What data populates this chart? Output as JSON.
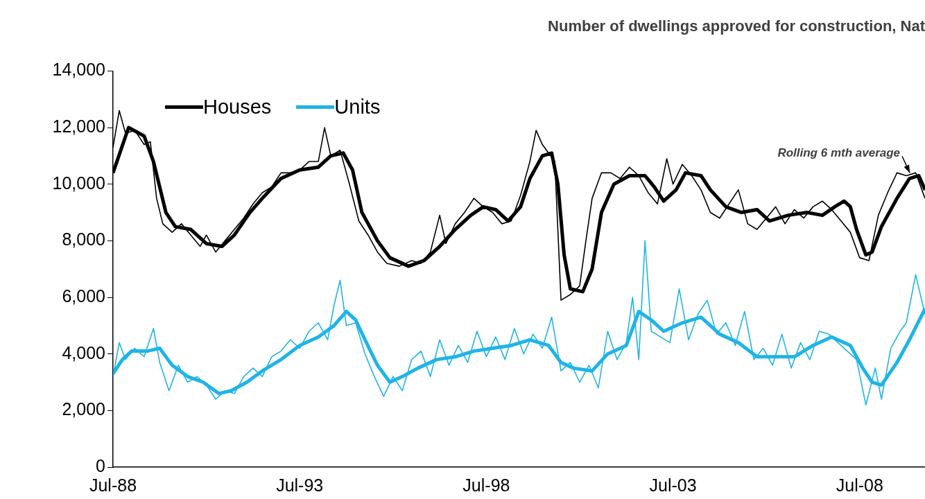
{
  "chart_data": {
    "type": "line",
    "title": "Number of dwellings approved for construction, Nat",
    "xlim": [
      "1988-07",
      "2010-04"
    ],
    "xticks": [
      {
        "value": "1988-07",
        "label": "Jul-88"
      },
      {
        "value": "1993-07",
        "label": "Jul-93"
      },
      {
        "value": "1998-07",
        "label": "Jul-98"
      },
      {
        "value": "2003-07",
        "label": "Jul-03"
      },
      {
        "value": "2008-07",
        "label": "Jul-08"
      }
    ],
    "ylim": [
      0,
      14000
    ],
    "yticks": [
      {
        "value": 0,
        "label": "0"
      },
      {
        "value": 2000,
        "label": "2,000"
      },
      {
        "value": 4000,
        "label": "4,000"
      },
      {
        "value": 6000,
        "label": "6,000"
      },
      {
        "value": 8000,
        "label": "8,000"
      },
      {
        "value": 10000,
        "label": "10,000"
      },
      {
        "value": 12000,
        "label": "12,000"
      },
      {
        "value": 14000,
        "label": "14,000"
      }
    ],
    "grid": false,
    "legend": "top left",
    "annotations": [
      {
        "text": "Rolling 6 mth average",
        "x": "2009-12",
        "y": 10300
      }
    ],
    "series": [
      {
        "color": "#000000",
        "x": [
          "1988-07",
          "1988-09",
          "1988-11",
          "1989-02",
          "1989-05",
          "1989-07",
          "1989-09",
          "1989-11",
          "1990-02",
          "1990-05",
          "1990-08",
          "1990-11",
          "1991-01",
          "1991-04",
          "1991-07",
          "1991-10",
          "1992-01",
          "1992-04",
          "1992-07",
          "1992-10",
          "1993-01",
          "1993-04",
          "1993-07",
          "1993-10",
          "1994-01",
          "1994-03",
          "1994-05",
          "1994-08",
          "1994-11",
          "1995-02",
          "1995-05",
          "1995-08",
          "1995-11",
          "1996-03",
          "1996-07",
          "1996-10",
          "1997-01",
          "1997-04",
          "1997-06",
          "1997-09",
          "1997-12",
          "1998-03",
          "1998-06",
          "1998-09",
          "1998-12",
          "1999-03",
          "1999-06",
          "1999-09",
          "1999-11",
          "2000-01",
          "2000-03",
          "2000-05",
          "2000-07",
          "2000-10",
          "2001-01",
          "2001-03",
          "2001-05",
          "2001-08",
          "2001-11",
          "2002-02",
          "2002-05",
          "2002-08",
          "2002-11",
          "2003-02",
          "2003-05",
          "2003-07",
          "2003-10",
          "2004-01",
          "2004-04",
          "2004-07",
          "2004-10",
          "2005-01",
          "2005-04",
          "2005-07",
          "2005-10",
          "2006-01",
          "2006-04",
          "2006-07",
          "2006-10",
          "2007-01",
          "2007-04",
          "2007-07",
          "2007-10",
          "2008-01",
          "2008-04",
          "2008-07",
          "2008-10",
          "2009-01",
          "2009-04",
          "2009-07",
          "2009-10",
          "2010-01",
          "2010-04"
        ],
        "values": [
          11300,
          12600,
          11800,
          11900,
          11400,
          11500,
          9500,
          8600,
          8300,
          8600,
          8200,
          7800,
          8200,
          7600,
          8000,
          8400,
          8800,
          9300,
          9700,
          9900,
          10400,
          10400,
          10500,
          10800,
          10800,
          12000,
          11000,
          11200,
          10000,
          8700,
          8200,
          7600,
          7200,
          7100,
          7300,
          7200,
          7600,
          8900,
          7900,
          8600,
          9000,
          9500,
          9200,
          9000,
          8600,
          8700,
          9600,
          10800,
          11900,
          11400,
          11100,
          10800,
          5900,
          6100,
          6400,
          8000,
          9500,
          10400,
          10400,
          10200,
          10600,
          10300,
          9700,
          9300,
          10900,
          10000,
          10700,
          10300,
          9800,
          9000,
          8800,
          9300,
          9800,
          8600,
          8400,
          8800,
          9200,
          8600,
          9100,
          8800,
          9200,
          9400,
          9100,
          8700,
          8300,
          7400,
          7300,
          8900,
          9700,
          10400,
          10300,
          10400,
          9500
        ]
      },
      {
        "color": "#1fb4e6",
        "x": [
          "1988-07",
          "1988-09",
          "1988-11",
          "1989-02",
          "1989-05",
          "1989-08",
          "1989-10",
          "1990-01",
          "1990-04",
          "1990-07",
          "1990-10",
          "1991-01",
          "1991-04",
          "1991-07",
          "1991-10",
          "1992-01",
          "1992-04",
          "1992-07",
          "1992-10",
          "1993-01",
          "1993-04",
          "1993-07",
          "1993-10",
          "1994-01",
          "1994-04",
          "1994-06",
          "1994-08",
          "1994-10",
          "1995-01",
          "1995-04",
          "1995-07",
          "1995-10",
          "1996-01",
          "1996-04",
          "1996-07",
          "1996-10",
          "1997-01",
          "1997-04",
          "1997-07",
          "1997-10",
          "1998-01",
          "1998-04",
          "1998-07",
          "1998-10",
          "1999-01",
          "1999-04",
          "1999-07",
          "1999-10",
          "2000-01",
          "2000-04",
          "2000-07",
          "2000-10",
          "2001-01",
          "2001-04",
          "2001-07",
          "2001-10",
          "2002-01",
          "2002-04",
          "2002-06",
          "2002-08",
          "2002-10",
          "2002-12",
          "2003-03",
          "2003-06",
          "2003-09",
          "2003-12",
          "2004-03",
          "2004-06",
          "2004-09",
          "2004-12",
          "2005-03",
          "2005-06",
          "2005-09",
          "2005-12",
          "2006-03",
          "2006-06",
          "2006-09",
          "2006-12",
          "2007-03",
          "2007-06",
          "2007-09",
          "2007-12",
          "2008-03",
          "2008-06",
          "2008-09",
          "2008-12",
          "2009-02",
          "2009-05",
          "2009-08",
          "2009-10",
          "2010-01",
          "2010-04"
        ],
        "values": [
          3200,
          4400,
          3800,
          4200,
          3900,
          4900,
          3700,
          2700,
          3600,
          3000,
          3200,
          2900,
          2400,
          2700,
          2600,
          3200,
          3500,
          3200,
          3900,
          4100,
          4500,
          4200,
          4800,
          5100,
          4500,
          5700,
          6600,
          5000,
          5100,
          4000,
          3200,
          2500,
          3200,
          2700,
          3800,
          4100,
          3200,
          4500,
          3600,
          4300,
          3700,
          4800,
          3900,
          4600,
          3800,
          4900,
          4000,
          4700,
          4200,
          5300,
          3400,
          3700,
          3000,
          3600,
          2800,
          4800,
          3800,
          4400,
          6000,
          3800,
          8000,
          4800,
          4600,
          4400,
          6300,
          4500,
          5400,
          5900,
          4700,
          5100,
          4300,
          5500,
          3800,
          4200,
          3600,
          4700,
          3500,
          4400,
          3800,
          4800,
          4700,
          4400,
          4100,
          3800,
          2200,
          3500,
          2400,
          4200,
          4800,
          5100,
          6800,
          5400
        ]
      },
      {
        "name": "Houses",
        "color": "#000000",
        "x": [
          "1988-07",
          "1988-12",
          "1989-05",
          "1989-08",
          "1989-12",
          "1990-03",
          "1990-08",
          "1991-01",
          "1991-06",
          "1991-10",
          "1992-03",
          "1992-07",
          "1993-01",
          "1993-07",
          "1994-01",
          "1994-05",
          "1994-09",
          "1994-12",
          "1995-03",
          "1995-08",
          "1995-12",
          "1996-06",
          "1996-11",
          "1997-04",
          "1997-09",
          "1998-02",
          "1998-06",
          "1998-10",
          "1999-02",
          "1999-06",
          "1999-09",
          "2000-01",
          "2000-04",
          "2000-06",
          "2000-08",
          "2000-10",
          "2001-02",
          "2001-05",
          "2001-08",
          "2001-12",
          "2002-05",
          "2002-10",
          "2003-01",
          "2003-04",
          "2003-08",
          "2003-11",
          "2004-04",
          "2004-07",
          "2004-12",
          "2005-05",
          "2005-10",
          "2006-02",
          "2006-08",
          "2007-02",
          "2007-07",
          "2007-11",
          "2008-02",
          "2008-04",
          "2008-06",
          "2008-09",
          "2008-11",
          "2009-02",
          "2009-07",
          "2009-11",
          "2010-02",
          "2010-04"
        ],
        "values": [
          10400,
          12000,
          11700,
          10800,
          9000,
          8500,
          8400,
          7900,
          7800,
          8200,
          9000,
          9500,
          10200,
          10500,
          10600,
          11000,
          11100,
          10500,
          9000,
          8000,
          7400,
          7100,
          7300,
          7800,
          8400,
          8900,
          9200,
          9100,
          8700,
          9200,
          10200,
          11000,
          11100,
          10000,
          7500,
          6300,
          6200,
          7000,
          9000,
          10000,
          10300,
          10300,
          9900,
          9400,
          9800,
          10400,
          10300,
          9800,
          9200,
          9000,
          9100,
          8700,
          8900,
          9000,
          8900,
          9200,
          9400,
          9200,
          8400,
          7500,
          7600,
          8500,
          9500,
          10200,
          10300,
          9800
        ]
      },
      {
        "name": "Units",
        "color": "#1fb4e6",
        "x": [
          "1988-07",
          "1988-10",
          "1989-01",
          "1989-06",
          "1989-10",
          "1990-02",
          "1990-07",
          "1990-12",
          "1991-05",
          "1991-09",
          "1992-02",
          "1992-07",
          "1993-01",
          "1993-07",
          "1994-01",
          "1994-06",
          "1994-10",
          "1995-01",
          "1995-04",
          "1995-08",
          "1995-12",
          "1996-04",
          "1996-09",
          "1997-03",
          "1997-09",
          "1998-03",
          "1998-09",
          "1999-03",
          "1999-09",
          "2000-03",
          "2000-07",
          "2000-11",
          "2001-05",
          "2001-10",
          "2002-04",
          "2002-08",
          "2002-12",
          "2003-04",
          "2003-10",
          "2004-04",
          "2004-10",
          "2005-04",
          "2005-10",
          "2006-04",
          "2006-10",
          "2007-04",
          "2007-10",
          "2008-04",
          "2008-08",
          "2008-11",
          "2009-02",
          "2009-07",
          "2009-11",
          "2010-04"
        ],
        "values": [
          3300,
          3800,
          4100,
          4100,
          4200,
          3600,
          3200,
          3000,
          2600,
          2700,
          3000,
          3400,
          3800,
          4300,
          4600,
          5000,
          5500,
          5200,
          4500,
          3600,
          3000,
          3200,
          3500,
          3800,
          3900,
          4100,
          4200,
          4300,
          4500,
          4300,
          3700,
          3500,
          3400,
          4000,
          4300,
          5500,
          5200,
          4800,
          5100,
          5300,
          4700,
          4400,
          3900,
          3900,
          3900,
          4300,
          4600,
          4300,
          3500,
          3000,
          2900,
          3700,
          4500,
          5600
        ]
      }
    ]
  }
}
